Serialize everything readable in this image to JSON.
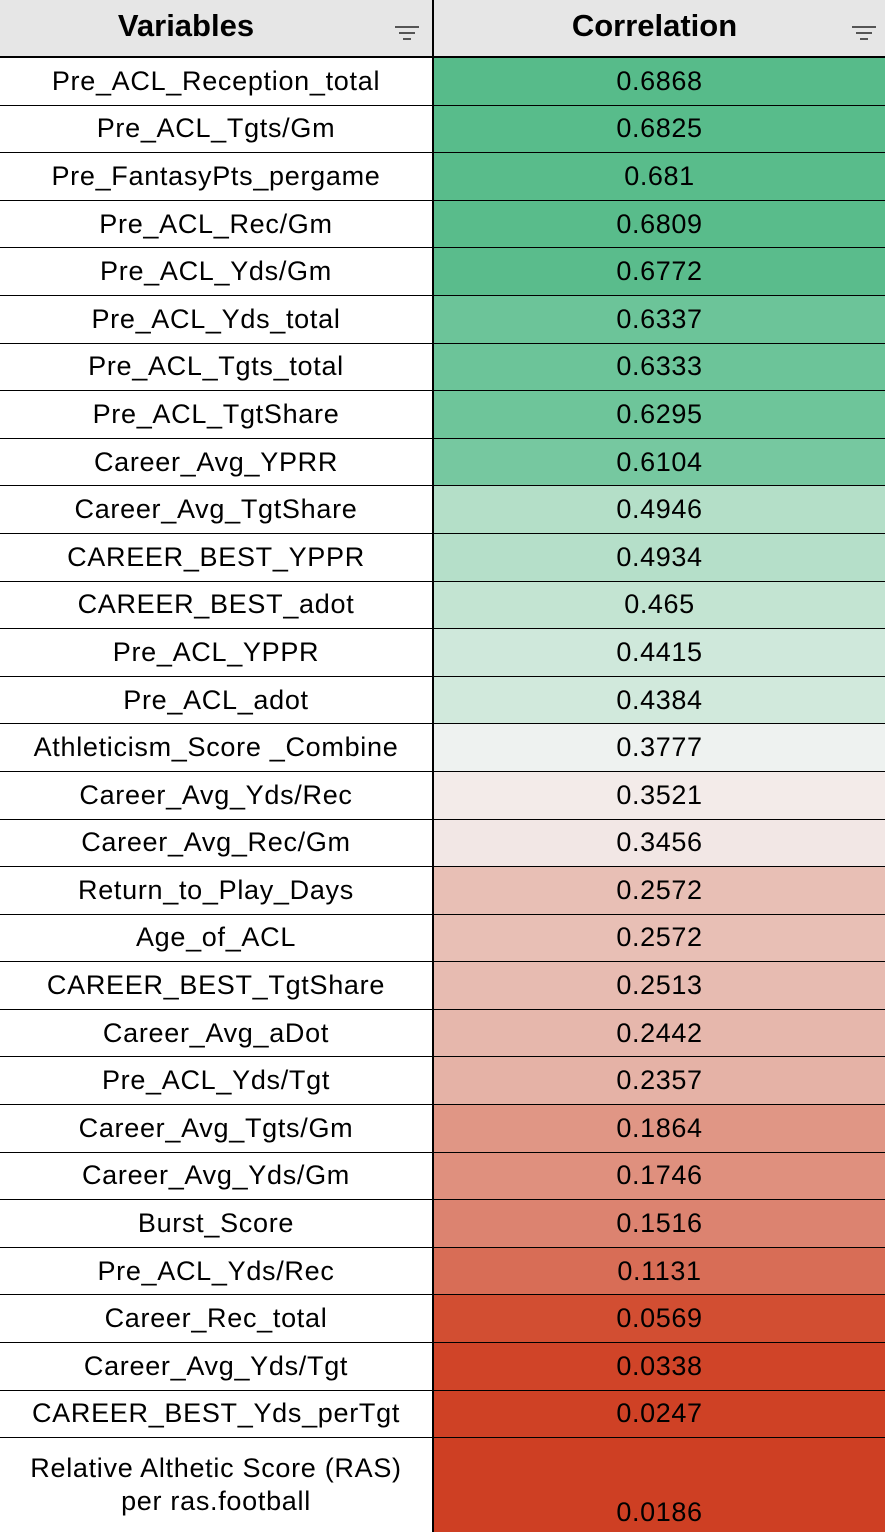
{
  "table": {
    "headers": {
      "variables": "Variables",
      "correlation": "Correlation"
    },
    "rows": [
      {
        "variable": "Pre_ACL_Reception_total",
        "correlation": "0.6868",
        "color": "#57bb8a"
      },
      {
        "variable": "Pre_ACL_Tgts/Gm",
        "correlation": "0.6825",
        "color": "#58bc8b"
      },
      {
        "variable": "Pre_FantasyPts_pergame",
        "correlation": "0.681",
        "color": "#59bc8b"
      },
      {
        "variable": "Pre_ACL_Rec/Gm",
        "correlation": "0.6809",
        "color": "#59bc8b"
      },
      {
        "variable": "Pre_ACL_Yds/Gm",
        "correlation": "0.6772",
        "color": "#5abc8c"
      },
      {
        "variable": "Pre_ACL_Yds_total",
        "correlation": "0.6337",
        "color": "#6cc499"
      },
      {
        "variable": "Pre_ACL_Tgts_total",
        "correlation": "0.6333",
        "color": "#6cc499"
      },
      {
        "variable": "Pre_ACL_TgtShare",
        "correlation": "0.6295",
        "color": "#6ec59a"
      },
      {
        "variable": "Career_Avg_YPRR",
        "correlation": "0.6104",
        "color": "#76c8a0"
      },
      {
        "variable": "Career_Avg_TgtShare",
        "correlation": "0.4946",
        "color": "#b4dfc8"
      },
      {
        "variable": "CAREER_BEST_YPPR",
        "correlation": "0.4934",
        "color": "#b5dfc9"
      },
      {
        "variable": "CAREER_BEST_adot",
        "correlation": "0.465",
        "color": "#c3e4d2"
      },
      {
        "variable": "Pre_ACL_YPPR",
        "correlation": "0.4415",
        "color": "#cfe8db"
      },
      {
        "variable": "Pre_ACL_adot",
        "correlation": "0.4384",
        "color": "#d1e9dc"
      },
      {
        "variable": "Athleticism_Score _Combine",
        "correlation": "0.3777",
        "color": "#eef2f0"
      },
      {
        "variable": "Career_Avg_Yds/Rec",
        "correlation": "0.3521",
        "color": "#f3ebe9"
      },
      {
        "variable": "Career_Avg_Rec/Gm",
        "correlation": "0.3456",
        "color": "#f2e7e5"
      },
      {
        "variable": "Return_to_Play_Days",
        "correlation": "0.2572",
        "color": "#e8bfb5"
      },
      {
        "variable": "Age_of_ACL",
        "correlation": "0.2572",
        "color": "#e8bfb5"
      },
      {
        "variable": "CAREER_BEST_TgtShare",
        "correlation": "0.2513",
        "color": "#e7bbb1"
      },
      {
        "variable": "Career_Avg_aDot",
        "correlation": "0.2442",
        "color": "#e6b7ac"
      },
      {
        "variable": "Pre_ACL_Yds/Tgt",
        "correlation": "0.2357",
        "color": "#e5b2a6"
      },
      {
        "variable": "Career_Avg_Tgts/Gm",
        "correlation": "0.1864",
        "color": "#e09685"
      },
      {
        "variable": "Career_Avg_Yds/Gm",
        "correlation": "0.1746",
        "color": "#df907e"
      },
      {
        "variable": "Burst_Score",
        "correlation": "0.1516",
        "color": "#dc8370"
      },
      {
        "variable": "Pre_ACL_Yds/Rec",
        "correlation": "0.1131",
        "color": "#d86d56"
      },
      {
        "variable": "Career_Rec_total",
        "correlation": "0.0569",
        "color": "#d24e32"
      },
      {
        "variable": "Career_Avg_Yds/Tgt",
        "correlation": "0.0338",
        "color": "#d04428"
      },
      {
        "variable": "CAREER_BEST_Yds_perTgt",
        "correlation": "0.0247",
        "color": "#cf4125"
      },
      {
        "variable": "Relative Althetic Score (RAS) per ras.football",
        "correlation": "0.0186",
        "color": "#ce3f23"
      }
    ]
  }
}
